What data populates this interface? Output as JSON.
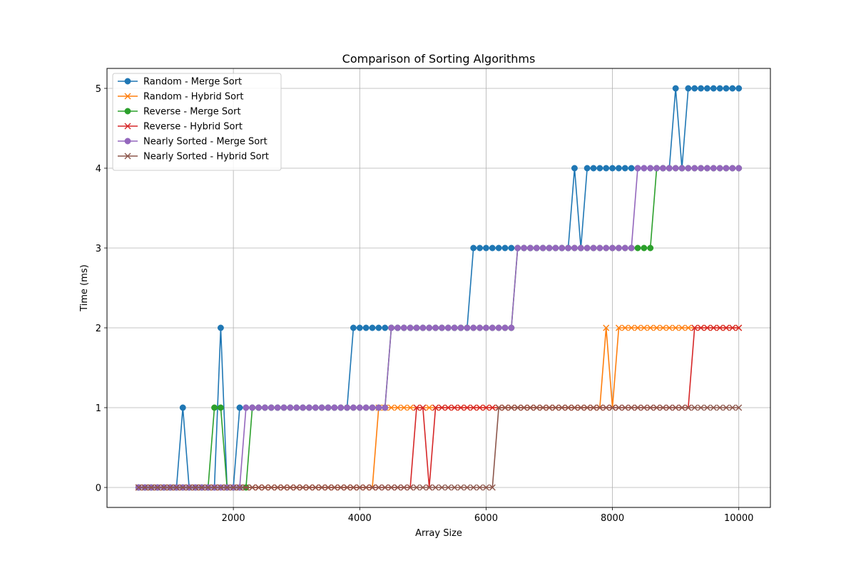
{
  "chart_data": {
    "type": "line",
    "title": "Comparison of Sorting Algorithms",
    "xlabel": "Array Size",
    "ylabel": "Time (ms)",
    "xlim": [
      0,
      10500
    ],
    "ylim": [
      -0.25,
      5.25
    ],
    "xticks": [
      2000,
      4000,
      6000,
      8000,
      10000
    ],
    "yticks": [
      0,
      1,
      2,
      3,
      4,
      5
    ],
    "grid": true,
    "legend_position": "top-left",
    "series": [
      {
        "name": "Random - Merge Sort",
        "color": "#1f77b4",
        "marker": "circle",
        "segments": [
          {
            "from": 500,
            "to": 1100,
            "v": 0
          },
          {
            "from": 1200,
            "to": 1200,
            "v": 1
          },
          {
            "from": 1300,
            "to": 1700,
            "v": 0
          },
          {
            "from": 1800,
            "to": 1800,
            "v": 2
          },
          {
            "from": 1900,
            "to": 2000,
            "v": 0
          },
          {
            "from": 2100,
            "to": 3800,
            "v": 1
          },
          {
            "from": 3900,
            "to": 5700,
            "v": 2
          },
          {
            "from": 5800,
            "to": 7300,
            "v": 3
          },
          {
            "from": 7400,
            "to": 7400,
            "v": 4
          },
          {
            "from": 7500,
            "to": 7500,
            "v": 3
          },
          {
            "from": 7600,
            "to": 8900,
            "v": 4
          },
          {
            "from": 9000,
            "to": 9000,
            "v": 5
          },
          {
            "from": 9100,
            "to": 9100,
            "v": 4
          },
          {
            "from": 9200,
            "to": 10000,
            "v": 5
          }
        ]
      },
      {
        "name": "Random - Hybrid Sort",
        "color": "#ff7f0e",
        "marker": "x",
        "segments": [
          {
            "from": 500,
            "to": 4200,
            "v": 0
          },
          {
            "from": 4300,
            "to": 7800,
            "v": 1
          },
          {
            "from": 7900,
            "to": 7900,
            "v": 2
          },
          {
            "from": 8000,
            "to": 8000,
            "v": 1
          },
          {
            "from": 8100,
            "to": 10000,
            "v": 2
          }
        ]
      },
      {
        "name": "Reverse - Merge Sort",
        "color": "#2ca02c",
        "marker": "circle",
        "segments": [
          {
            "from": 500,
            "to": 1600,
            "v": 0
          },
          {
            "from": 1700,
            "to": 1800,
            "v": 1
          },
          {
            "from": 1900,
            "to": 2200,
            "v": 0
          },
          {
            "from": 2300,
            "to": 4400,
            "v": 1
          },
          {
            "from": 4500,
            "to": 6400,
            "v": 2
          },
          {
            "from": 6500,
            "to": 8600,
            "v": 3
          },
          {
            "from": 8700,
            "to": 10000,
            "v": 4
          }
        ]
      },
      {
        "name": "Reverse - Hybrid Sort",
        "color": "#d62728",
        "marker": "x",
        "segments": [
          {
            "from": 500,
            "to": 4800,
            "v": 0
          },
          {
            "from": 4900,
            "to": 5000,
            "v": 1
          },
          {
            "from": 5100,
            "to": 5100,
            "v": 0
          },
          {
            "from": 5200,
            "to": 9200,
            "v": 1
          },
          {
            "from": 9300,
            "to": 10000,
            "v": 2
          }
        ]
      },
      {
        "name": "Nearly Sorted - Merge Sort",
        "color": "#9467bd",
        "marker": "circle",
        "segments": [
          {
            "from": 500,
            "to": 2100,
            "v": 0
          },
          {
            "from": 2200,
            "to": 4400,
            "v": 1
          },
          {
            "from": 4500,
            "to": 6400,
            "v": 2
          },
          {
            "from": 6500,
            "to": 8300,
            "v": 3
          },
          {
            "from": 8400,
            "to": 10000,
            "v": 4
          }
        ]
      },
      {
        "name": "Nearly Sorted - Hybrid Sort",
        "color": "#8c564b",
        "marker": "x",
        "segments": [
          {
            "from": 500,
            "to": 6100,
            "v": 0
          },
          {
            "from": 6200,
            "to": 10000,
            "v": 1
          }
        ]
      }
    ]
  }
}
